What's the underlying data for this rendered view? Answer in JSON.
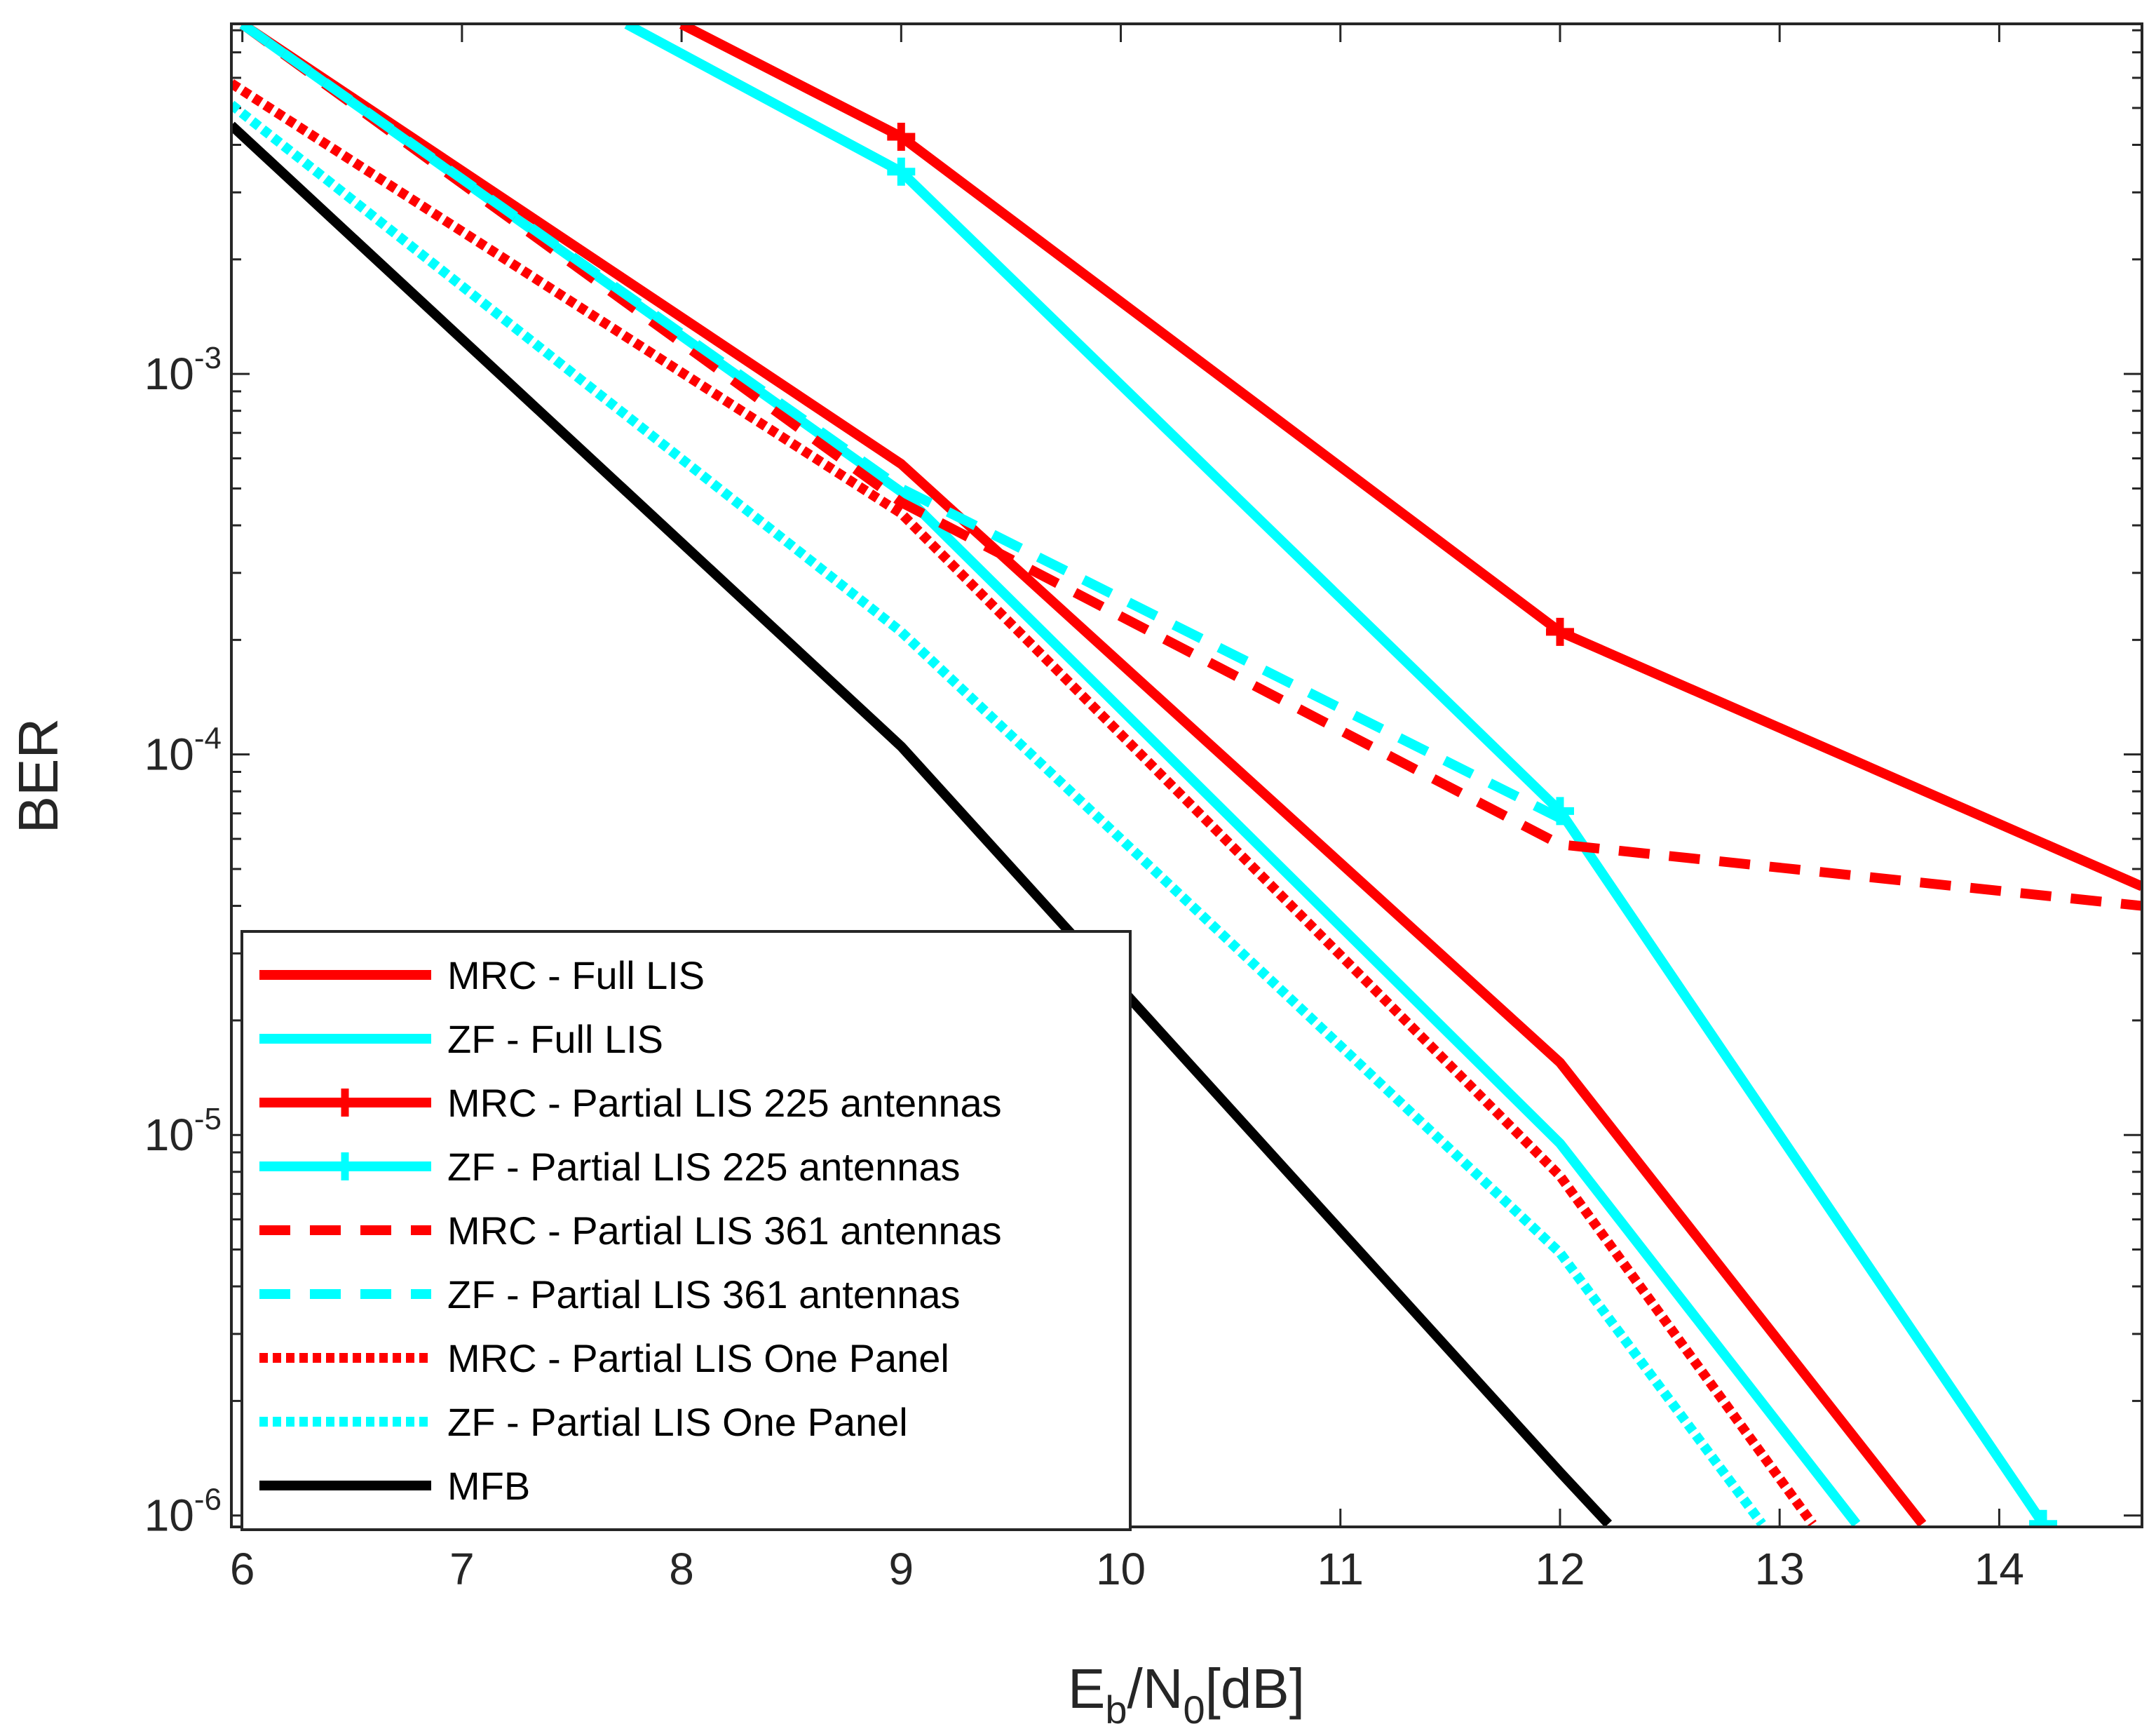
{
  "chart_data": {
    "type": "line",
    "xlabel": {
      "base": "E",
      "sub1": "b",
      "mid": "/N",
      "sub2": "0",
      "tail": "[dB]"
    },
    "ylabel": "BER",
    "xlim": [
      5.95,
      14.65
    ],
    "ylim_log10": [
      -6.03,
      -2.08
    ],
    "x_ticks": [
      6,
      7,
      8,
      9,
      10,
      11,
      12,
      13,
      14
    ],
    "y_ticks": [
      {
        "exp": -3,
        "base": "10",
        "sup": "-3"
      },
      {
        "exp": -4,
        "base": "10",
        "sup": "-4"
      },
      {
        "exp": -5,
        "base": "10",
        "sup": "-5"
      },
      {
        "exp": -6,
        "base": "10",
        "sup": "-6"
      }
    ],
    "legend_location": "bottom-left",
    "series": [
      {
        "name": "MRC - Full LIS",
        "color": "#ff0000",
        "style": "solid",
        "marker": "none",
        "x": [
          6,
          9,
          12,
          13.65
        ],
        "y": [
          0.0083,
          0.00058,
          1.55e-05,
          9.5e-07
        ]
      },
      {
        "name": "ZF - Full LIS",
        "color": "#00ffff",
        "style": "solid",
        "marker": "none",
        "x": [
          6,
          9,
          12,
          13.35
        ],
        "y": [
          0.0083,
          0.00049,
          9.5e-06,
          9.5e-07
        ]
      },
      {
        "name": "MRC - Partial LIS 225 antennas",
        "color": "#ff0000",
        "style": "solid",
        "marker": "plus",
        "x": [
          8,
          9,
          12,
          14.65
        ],
        "y": [
          0.0083,
          0.0042,
          0.00021,
          4.5e-05
        ]
      },
      {
        "name": "ZF - Partial LIS 225 antennas",
        "color": "#00ffff",
        "style": "solid",
        "marker": "plus",
        "x": [
          7.75,
          9,
          12,
          14.2
        ],
        "y": [
          0.0083,
          0.0034,
          7.1e-05,
          9.5e-07
        ]
      },
      {
        "name": "MRC - Partial LIS 361 antennas",
        "color": "#ff0000",
        "style": "dashed",
        "marker": "none",
        "x": [
          6,
          9,
          12,
          14.65
        ],
        "y": [
          0.0083,
          0.00046,
          5.8e-05,
          4e-05
        ]
      },
      {
        "name": "ZF - Partial LIS 361 antennas",
        "color": "#00ffff",
        "style": "dashed",
        "marker": "none",
        "x": [
          6,
          9,
          12
        ],
        "y": [
          0.0083,
          0.0005,
          6.8e-05
        ]
      },
      {
        "name": "MRC - Partial LIS One Panel",
        "color": "#ff0000",
        "style": "dotted",
        "marker": "none",
        "x": [
          5.95,
          9,
          12,
          13.15
        ],
        "y": [
          0.0058,
          0.00043,
          7.8e-06,
          9.5e-07
        ]
      },
      {
        "name": "ZF - Partial LIS One Panel",
        "color": "#00ffff",
        "style": "dotted",
        "marker": "none",
        "x": [
          5.95,
          9,
          12,
          12.92
        ],
        "y": [
          0.0051,
          0.00021,
          4.9e-06,
          9.5e-07
        ]
      },
      {
        "name": "MFB",
        "color": "#000000",
        "style": "solid",
        "marker": "none",
        "x": [
          5.95,
          9,
          12,
          12.22
        ],
        "y": [
          0.0045,
          0.000105,
          1.3e-06,
          9.5e-07
        ]
      }
    ]
  }
}
